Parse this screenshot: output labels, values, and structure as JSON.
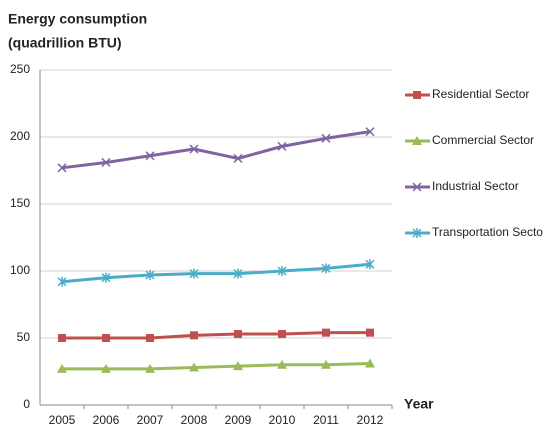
{
  "chart_data": {
    "type": "line",
    "y_label": [
      "Energy consumption",
      "(quadrillion BTU)"
    ],
    "x_label": "Year",
    "categories": [
      "2005",
      "2006",
      "2007",
      "2008",
      "2009",
      "2010",
      "2011",
      "2012"
    ],
    "series": [
      {
        "name": "Residential Sector",
        "color": "#c0504d",
        "marker": "square",
        "values": [
          50,
          50,
          50,
          52,
          53,
          53,
          54,
          54
        ]
      },
      {
        "name": "Commercial Sector",
        "color": "#9bbb59",
        "marker": "triangle",
        "values": [
          27,
          27,
          27,
          28,
          29,
          30,
          30,
          31
        ]
      },
      {
        "name": "Industrial Sector",
        "color": "#8064a2",
        "marker": "x",
        "values": [
          177,
          181,
          186,
          191,
          184,
          193,
          199,
          204
        ]
      },
      {
        "name": "Transportation Secto",
        "color": "#4bacc6",
        "marker": "star",
        "values": [
          92,
          95,
          97,
          98,
          98,
          100,
          102,
          105
        ]
      }
    ],
    "ylim": [
      0,
      250
    ],
    "yticks": [
      0,
      50,
      100,
      150,
      200,
      250
    ],
    "grid": true,
    "legend": "right"
  }
}
